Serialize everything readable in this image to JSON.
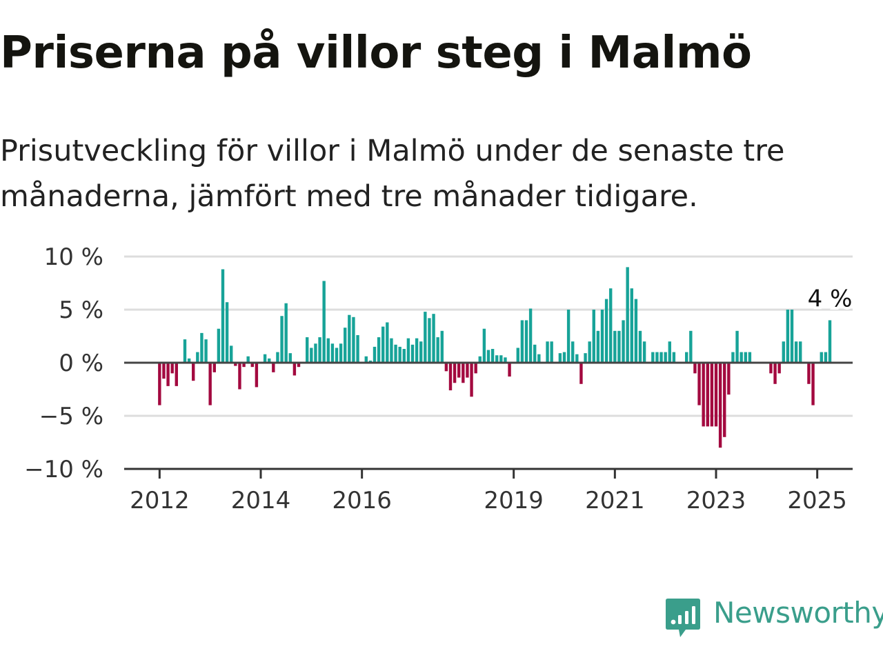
{
  "header": {
    "title": "Priserna på villor steg i Malmö",
    "subtitle": "Prisutveckling för villor i Malmö under de senaste tre månaderna, jämfört med tre månader tidigare."
  },
  "brand": {
    "name": "Newsworthy",
    "color": "#3a9e8b",
    "icon": "newsworthy-logo-icon"
  },
  "colors": {
    "positive": "#17a398",
    "negative": "#a3093f",
    "grid": "#dddddd",
    "zero": "#444444",
    "axis": "#333333"
  },
  "chart_data": {
    "type": "bar",
    "title": "",
    "xlabel": "",
    "ylabel": "",
    "ylim": [
      -10,
      10
    ],
    "y_ticks": [
      10,
      5,
      0,
      -5,
      -10
    ],
    "y_tick_labels": [
      "10 %",
      "5 %",
      "0 %",
      "−5 %",
      "−10 %"
    ],
    "x_ticks": [
      2012,
      2014,
      2016,
      2019,
      2021,
      2023,
      2025
    ],
    "x_tick_labels": [
      "2012",
      "2014",
      "2016",
      "2019",
      "2021",
      "2023",
      "2025"
    ],
    "xlim": [
      2011.3,
      2025.7
    ],
    "grid": true,
    "start": "2012-01",
    "frequency": "monthly",
    "values": [
      -4,
      -1.5,
      -2.2,
      -1,
      -2.2,
      0,
      2.2,
      0.4,
      -1.7,
      1,
      2.8,
      2.2,
      -4,
      -0.9,
      3.2,
      8.8,
      5.7,
      1.6,
      -0.3,
      -2.5,
      -0.4,
      0.6,
      -0.4,
      -2.3,
      0,
      0.8,
      0.4,
      -0.9,
      1,
      4.4,
      5.6,
      0.9,
      -1.2,
      -0.4,
      0,
      2.4,
      1.4,
      1.8,
      2.4,
      7.7,
      2.3,
      1.8,
      1.4,
      1.8,
      3.3,
      4.5,
      4.3,
      2.6,
      0,
      0.6,
      0.2,
      1.5,
      2.4,
      3.4,
      3.8,
      2.3,
      1.7,
      1.5,
      1.3,
      2.3,
      1.7,
      2.3,
      2.0,
      4.8,
      4.2,
      4.6,
      2.4,
      3.0,
      -0.8,
      -2.6,
      -1.9,
      -1.4,
      -1.9,
      -1.4,
      -3.2,
      -1.0,
      0.6,
      3.2,
      1.2,
      1.3,
      0.7,
      0.7,
      0.5,
      -1.3,
      0,
      1.4,
      4.0,
      4.0,
      5.1,
      1.7,
      0.8,
      0,
      2.0,
      2.0,
      0,
      0.9,
      1.0,
      5.0,
      2.0,
      0.8,
      -2.0,
      0.9,
      2.0,
      5.0,
      3.0,
      5.0,
      6.0,
      7.0,
      3.0,
      3.0,
      4.0,
      9.0,
      7.0,
      6.0,
      3.0,
      2.0,
      0,
      1.0,
      1.0,
      1.0,
      1.0,
      2.0,
      1.0,
      0,
      0,
      1.0,
      3.0,
      -1.0,
      -4.0,
      -6.0,
      -6.0,
      -6.0,
      -6.0,
      -8.0,
      -7.0,
      -3.0,
      1.0,
      3.0,
      1.0,
      1.0,
      1.0,
      0,
      0,
      0,
      0,
      -1.0,
      -2.0,
      -1.0,
      2.0,
      5.0,
      5.0,
      2.0,
      2.0,
      0,
      -2.0,
      -4.0,
      0,
      1.0,
      1.0,
      4.0
    ],
    "annotations": [
      {
        "label": "4 %",
        "value": 4,
        "at": "last"
      }
    ]
  }
}
